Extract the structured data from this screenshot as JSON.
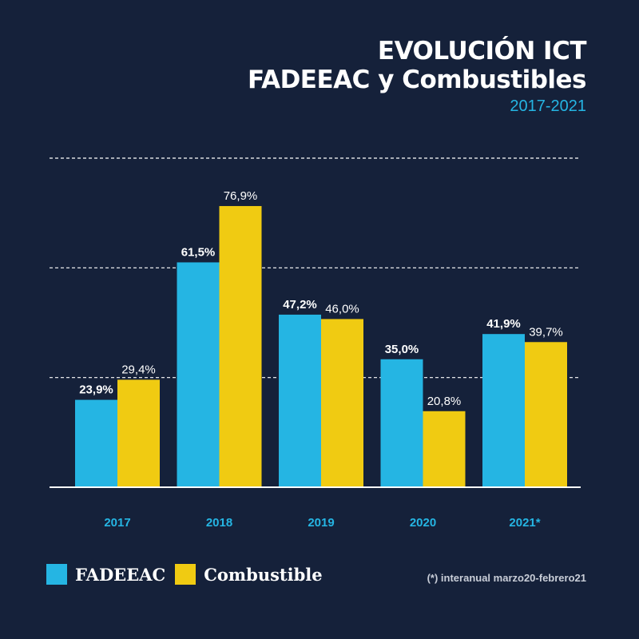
{
  "header": {
    "title_line1": "EVOLUCIÓN ICT",
    "title_line2": "FADEEAC y Combustibles",
    "subtitle": "2017-2021"
  },
  "colors": {
    "background": "#15213a",
    "fadeeac": "#25b5e3",
    "combustible": "#f0cb12",
    "subtitle": "#25b5e3",
    "grid": "#ffffff"
  },
  "legend": {
    "fadeeac_label": "FADEEAC",
    "combustible_label": "Combustible"
  },
  "footnote": "(*) interanual marzo20-febrero21",
  "chart_data": {
    "type": "bar",
    "title": "EVOLUCIÓN ICT FADEEAC y Combustibles",
    "subtitle": "2017-2021",
    "categories": [
      "2017",
      "2018",
      "2019",
      "2020",
      "2021*"
    ],
    "series": [
      {
        "name": "FADEEAC",
        "values": [
          23.9,
          61.5,
          47.2,
          35.0,
          41.9
        ],
        "labels": [
          "23,9%",
          "61,5%",
          "47,2%",
          "35,0%",
          "41,9%"
        ]
      },
      {
        "name": "Combustible",
        "values": [
          29.4,
          76.9,
          46.0,
          20.8,
          39.7
        ],
        "labels": [
          "29,4%",
          "76,9%",
          "46,0%",
          "20,8%",
          "39,7%"
        ]
      }
    ],
    "ylim": [
      0,
      90
    ],
    "grid": true,
    "legend_position": "bottom-left"
  }
}
